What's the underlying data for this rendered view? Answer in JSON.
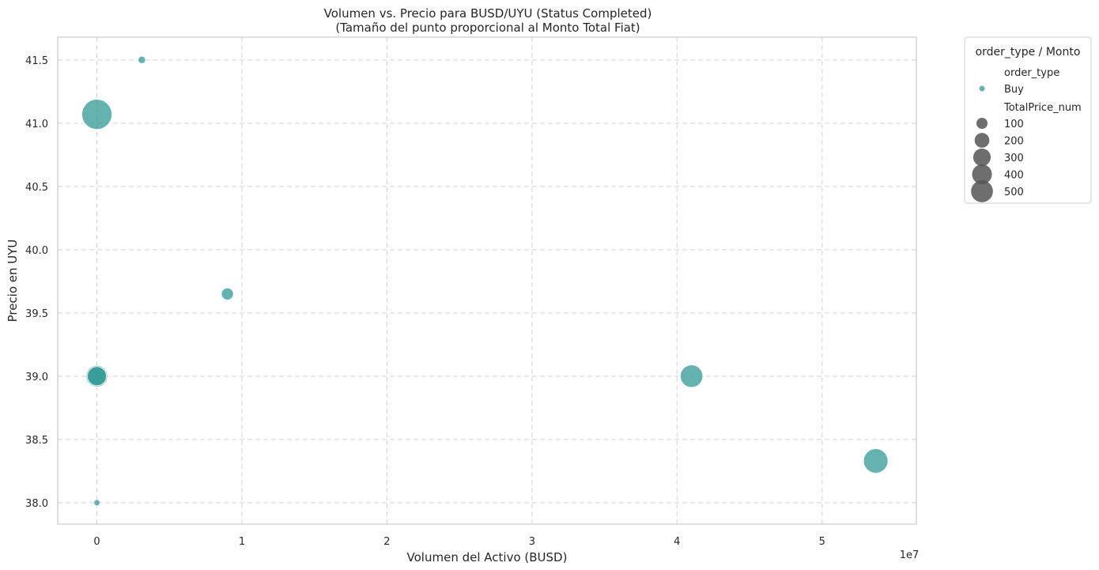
{
  "chart_data": {
    "type": "scatter",
    "title": "Volumen vs. Precio para BUSD/UYU (Status Completed)",
    "subtitle": "(Tamaño del punto proporcional al Monto Total Fiat)",
    "xlabel": "Volumen del Activo (BUSD)",
    "ylabel": "Precio en UYU",
    "x_offset_label": "1e7",
    "xlim": [
      -0.27,
      5.65
    ],
    "ylim": [
      37.83,
      41.68
    ],
    "x_ticks": [
      0,
      1,
      2,
      3,
      4,
      5
    ],
    "y_ticks": [
      38.0,
      38.5,
      39.0,
      39.5,
      40.0,
      40.5,
      41.0,
      41.5
    ],
    "x_tick_labels": [
      "0",
      "1",
      "2",
      "3",
      "4",
      "5"
    ],
    "y_tick_labels": [
      "38.0",
      "38.5",
      "39.0",
      "39.5",
      "40.0",
      "40.5",
      "41.0",
      "41.5"
    ],
    "grid": true,
    "series": [
      {
        "name": "Buy",
        "color": "#2a9591",
        "points": [
          {
            "x": 0.0,
            "y": 41.07,
            "size": 500
          },
          {
            "x": 0.31,
            "y": 41.5,
            "size": 30
          },
          {
            "x": 0.9,
            "y": 39.65,
            "size": 80
          },
          {
            "x": 0.0,
            "y": 39.0,
            "size": 250
          },
          {
            "x": 0.0,
            "y": 39.0,
            "size": 200
          },
          {
            "x": 4.1,
            "y": 39.0,
            "size": 280
          },
          {
            "x": 5.37,
            "y": 38.33,
            "size": 330
          },
          {
            "x": 0.0,
            "y": 38.0,
            "size": 20
          }
        ]
      }
    ],
    "legend": {
      "title": "order_type / Monto",
      "placement": "outside-right",
      "hue_heading": "order_type",
      "hue_entries": [
        "Buy"
      ],
      "size_heading": "TotalPrice_num",
      "size_entries": [
        100,
        200,
        300,
        400,
        500
      ],
      "size_color": "#555555"
    }
  }
}
